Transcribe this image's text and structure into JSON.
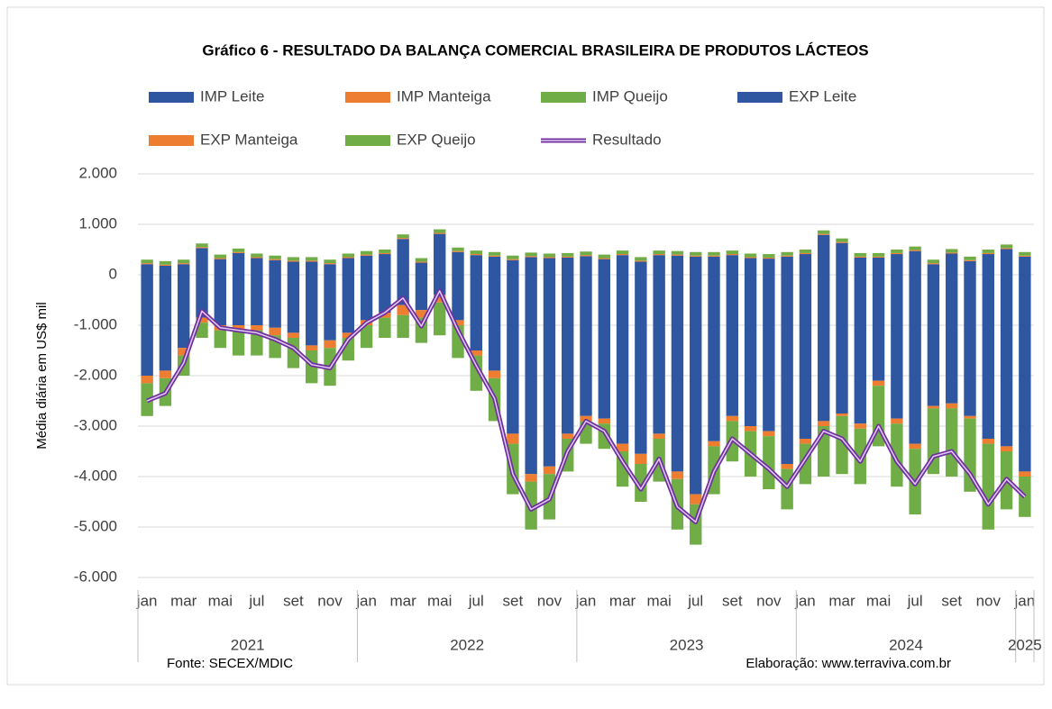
{
  "chart_data": {
    "type": "bar",
    "title": "Gráfico 6 - RESULTADO DA BALANÇA COMERCIAL BRASILEIRA DE PRODUTOS LÁCTEOS",
    "y_label": "Média diária em US$ mil",
    "source": "Fonte: SECEX/MDIC",
    "credit": "Elaboração: www.terraviva.com.br",
    "categories": [
      "jan",
      null,
      "mar",
      null,
      "mai",
      null,
      "jul",
      null,
      "set",
      null,
      "nov",
      null,
      "jan",
      null,
      "mar",
      null,
      "mai",
      null,
      "jul",
      null,
      "set",
      null,
      "nov",
      null,
      "jan",
      null,
      "mar",
      null,
      "mai",
      null,
      "jul",
      null,
      "set",
      null,
      "nov",
      null,
      "jan",
      null,
      "mar",
      null,
      "mai",
      null,
      "jul",
      null,
      "set",
      null,
      "nov",
      null,
      "jan"
    ],
    "x_groups": [
      "2021",
      "2022",
      "2023",
      "2024",
      "2025"
    ],
    "ylim": [
      -6000,
      2000
    ],
    "yticks": [
      {
        "value": -6000,
        "label": "-6.000"
      },
      {
        "value": -5000,
        "label": "-5.000"
      },
      {
        "value": -4000,
        "label": "-4.000"
      },
      {
        "value": -3000,
        "label": "-3.000"
      },
      {
        "value": -2000,
        "label": "-2.000"
      },
      {
        "value": -1000,
        "label": "-1.000"
      },
      0,
      {
        "value": 1000,
        "label": "1.000"
      },
      {
        "value": 2000,
        "label": "2.000"
      }
    ],
    "grid": true,
    "stacked": true,
    "series": [
      {
        "name": "IMP Leite",
        "color": "#2f56a0",
        "values": [
          -2000,
          -1900,
          -1450,
          -850,
          -1000,
          -1000,
          -1000,
          -1050,
          -1150,
          -1400,
          -1300,
          -1150,
          -900,
          -750,
          -600,
          -700,
          -400,
          -900,
          -1500,
          -1900,
          -3150,
          -3950,
          -3800,
          -3150,
          -2800,
          -2850,
          -3350,
          -3550,
          -3150,
          -3900,
          -4350,
          -3300,
          -2800,
          -3000,
          -3100,
          -3750,
          -3250,
          -2900,
          -2750,
          -2950,
          -2100,
          -2850,
          -3350,
          -2600,
          -2550,
          -2800,
          -3250,
          -3400,
          -3900
        ]
      },
      {
        "name": "IMP Manteiga",
        "color": "#ed7d31",
        "values": [
          -150,
          -150,
          -150,
          -100,
          -100,
          -100,
          -100,
          -150,
          -100,
          -100,
          -150,
          -100,
          -100,
          -100,
          -200,
          -150,
          -150,
          -100,
          -100,
          -150,
          -200,
          -150,
          -150,
          -100,
          -100,
          -100,
          -150,
          -200,
          -100,
          -150,
          -200,
          -100,
          -100,
          -100,
          -100,
          -100,
          -100,
          -100,
          -50,
          -100,
          -100,
          -100,
          -100,
          -50,
          -100,
          -50,
          -100,
          -100,
          -100
        ]
      },
      {
        "name": "IMP Queijo",
        "color": "#70ad47",
        "values": [
          -650,
          -550,
          -400,
          -300,
          -350,
          -500,
          -500,
          -450,
          -600,
          -650,
          -750,
          -450,
          -450,
          -400,
          -450,
          -500,
          -650,
          -650,
          -700,
          -850,
          -1000,
          -950,
          -900,
          -650,
          -450,
          -500,
          -700,
          -750,
          -850,
          -1000,
          -800,
          -950,
          -800,
          -900,
          -1050,
          -800,
          -800,
          -1000,
          -1150,
          -1100,
          -1200,
          -1250,
          -1300,
          -1300,
          -1350,
          -1450,
          -1700,
          -1150,
          -800
        ]
      },
      {
        "name": "EXP Leite",
        "color": "#2f56a0",
        "values": [
          210,
          180,
          210,
          530,
          310,
          430,
          330,
          290,
          260,
          260,
          210,
          330,
          380,
          410,
          710,
          240,
          810,
          450,
          390,
          360,
          290,
          350,
          330,
          340,
          370,
          310,
          390,
          260,
          390,
          380,
          360,
          360,
          390,
          330,
          320,
          360,
          410,
          790,
          630,
          340,
          340,
          410,
          470,
          210,
          420,
          270,
          410,
          510,
          360
        ]
      },
      {
        "name": "EXP Manteiga",
        "color": "#ed7d31",
        "values": [
          20,
          20,
          20,
          20,
          20,
          20,
          20,
          20,
          20,
          20,
          20,
          20,
          20,
          20,
          20,
          20,
          20,
          20,
          20,
          20,
          20,
          20,
          20,
          20,
          20,
          20,
          20,
          20,
          20,
          20,
          20,
          20,
          20,
          20,
          20,
          20,
          20,
          20,
          20,
          20,
          20,
          20,
          20,
          20,
          20,
          20,
          20,
          20,
          20
        ]
      },
      {
        "name": "EXP Queijo",
        "color": "#70ad47",
        "values": [
          70,
          70,
          70,
          70,
          70,
          70,
          70,
          70,
          70,
          70,
          70,
          70,
          70,
          70,
          70,
          70,
          70,
          70,
          70,
          70,
          70,
          70,
          70,
          70,
          70,
          70,
          70,
          70,
          70,
          70,
          70,
          70,
          70,
          70,
          70,
          70,
          70,
          70,
          70,
          70,
          70,
          70,
          70,
          70,
          70,
          70,
          70,
          70,
          70
        ]
      },
      {
        "name": "Resultado",
        "color": "#7030a0",
        "type": "line",
        "values": [
          -2500,
          -2350,
          -1750,
          -720,
          -1050,
          -1100,
          -1150,
          -1280,
          -1450,
          -1780,
          -1850,
          -1280,
          -950,
          -750,
          -460,
          -1020,
          -320,
          -1100,
          -1800,
          -2450,
          -3950,
          -4650,
          -4450,
          -3500,
          -2900,
          -3100,
          -3700,
          -4250,
          -3650,
          -4600,
          -4900,
          -3900,
          -3250,
          -3550,
          -3850,
          -4200,
          -3650,
          -3100,
          -3250,
          -3700,
          -3000,
          -3700,
          -4150,
          -3600,
          -3500,
          -3950,
          -4550,
          -4050,
          -4400
        ]
      }
    ]
  }
}
